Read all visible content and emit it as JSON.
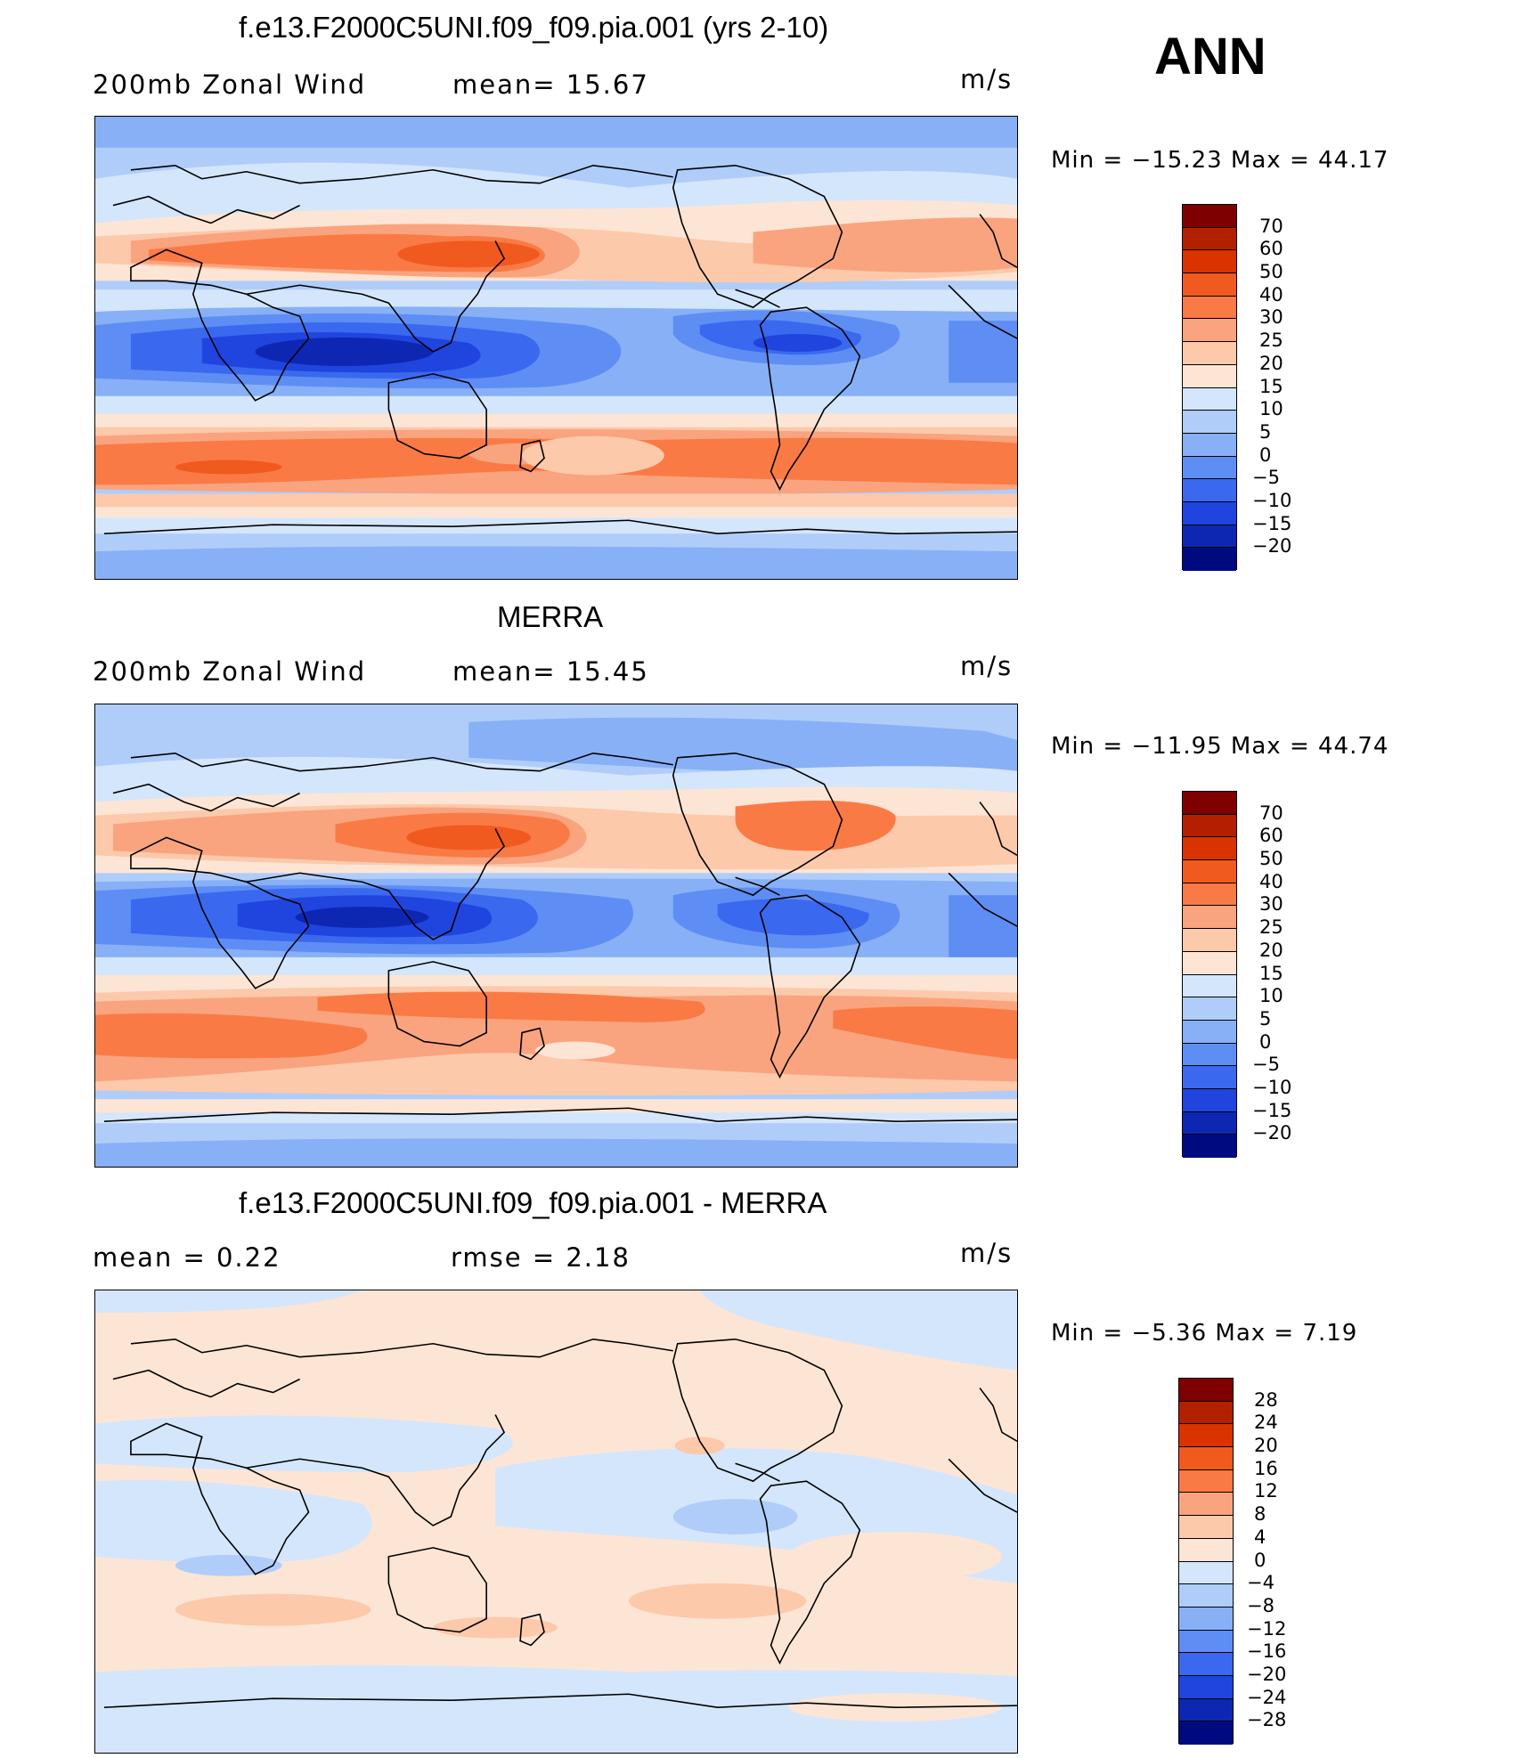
{
  "season": "ANN",
  "units": "m/s",
  "panels": [
    {
      "title": "f.e13.F2000C5UNI.f09_f09.pia.001 (yrs 2-10)",
      "left_label": "200mb Zonal Wind",
      "center_label": "mean=   15.67",
      "min_max": "Min  =  −15.23 Max  =    44.17",
      "levels": [
        "70",
        "60",
        "50",
        "40",
        "30",
        "25",
        "20",
        "15",
        "10",
        "5",
        "0",
        "−5",
        "−10",
        "−15",
        "−20"
      ]
    },
    {
      "title": "MERRA",
      "left_label": "200mb Zonal Wind",
      "center_label": "mean=   15.45",
      "min_max": "Min  =  −11.95 Max  =    44.74",
      "levels": [
        "70",
        "60",
        "50",
        "40",
        "30",
        "25",
        "20",
        "15",
        "10",
        "5",
        "0",
        "−5",
        "−10",
        "−15",
        "−20"
      ]
    },
    {
      "title": "f.e13.F2000C5UNI.f09_f09.pia.001 - MERRA",
      "left_label": "mean  =     0.22",
      "center_label": "rmse  =     2.18",
      "min_max": "Min  =    −5.36 Max  =      7.19",
      "levels": [
        "28",
        "24",
        "20",
        "16",
        "12",
        "8",
        "4",
        "0",
        "−4",
        "−8",
        "−12",
        "−16",
        "−20",
        "−24",
        "−28"
      ]
    }
  ],
  "colors": {
    "abs_scale": [
      "#7f0000",
      "#b22000",
      "#d93300",
      "#f05a1e",
      "#fa7a45",
      "#f9a47e",
      "#fcc9ab",
      "#fde5d5",
      "#d4e6fb",
      "#b0cdfa",
      "#88b0f7",
      "#5e8ef4",
      "#3a69ef",
      "#1f45de",
      "#0e27b3",
      "#000a80"
    ],
    "diff_scale": [
      "#7f0000",
      "#b22000",
      "#d93300",
      "#f05a1e",
      "#fa7a45",
      "#f9a47e",
      "#fcc9ab",
      "#fde5d5",
      "#d4e6fb",
      "#b0cdfa",
      "#88b0f7",
      "#5e8ef4",
      "#3a69ef",
      "#1f45de",
      "#0e27b3",
      "#000a80"
    ]
  }
}
